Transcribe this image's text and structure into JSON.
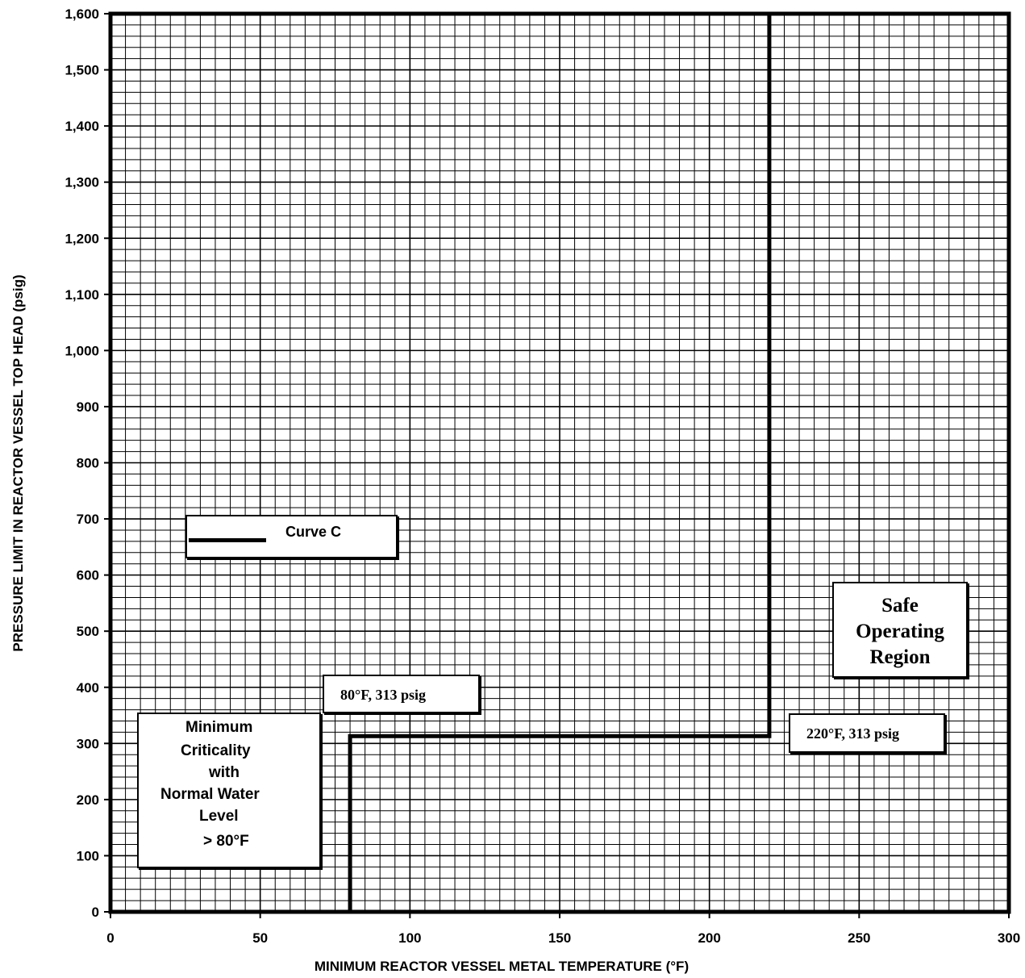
{
  "chart_data": {
    "type": "line",
    "xlabel": "MINIMUM REACTOR VESSEL METAL TEMPERATURE (°F)",
    "ylabel": "PRESSURE LIMIT IN REACTOR VESSEL TOP HEAD (psig)",
    "xlim": [
      0,
      300
    ],
    "ylim": [
      0,
      1600
    ],
    "x_ticks": [
      0,
      50,
      100,
      150,
      200,
      250,
      300
    ],
    "x_tick_labels": [
      "0",
      "50",
      "100",
      "150",
      "200",
      "250",
      "300"
    ],
    "y_ticks": [
      0,
      100,
      200,
      300,
      400,
      500,
      600,
      700,
      800,
      900,
      1000,
      1100,
      1200,
      1300,
      1400,
      1500,
      1600
    ],
    "y_tick_labels": [
      "0",
      "100",
      "200",
      "300",
      "400",
      "500",
      "600",
      "700",
      "800",
      "900",
      "1,000",
      "1,100",
      "1,200",
      "1,300",
      "1,400",
      "1,500",
      "1,600"
    ],
    "grid": true,
    "grid_minor_x": 5,
    "grid_minor_y": 20,
    "series": [
      {
        "name": "Curve C",
        "color": "#000000",
        "points": [
          [
            80,
            0
          ],
          [
            80,
            313
          ],
          [
            220,
            313
          ],
          [
            220,
            1600
          ]
        ]
      }
    ],
    "legend": {
      "label": "Curve C",
      "placement": "center-left"
    },
    "annotations": [
      {
        "id": "pt1",
        "text": "80°F, 313 psig"
      },
      {
        "id": "pt2",
        "text": "220°F, 313 psig"
      },
      {
        "id": "safe",
        "lines": [
          "Safe",
          "Operating",
          "Region"
        ]
      },
      {
        "id": "mincrit",
        "lines": [
          "Minimum",
          "Criticality",
          "with",
          "Normal Water",
          "Level",
          "> 80°F"
        ]
      }
    ]
  }
}
